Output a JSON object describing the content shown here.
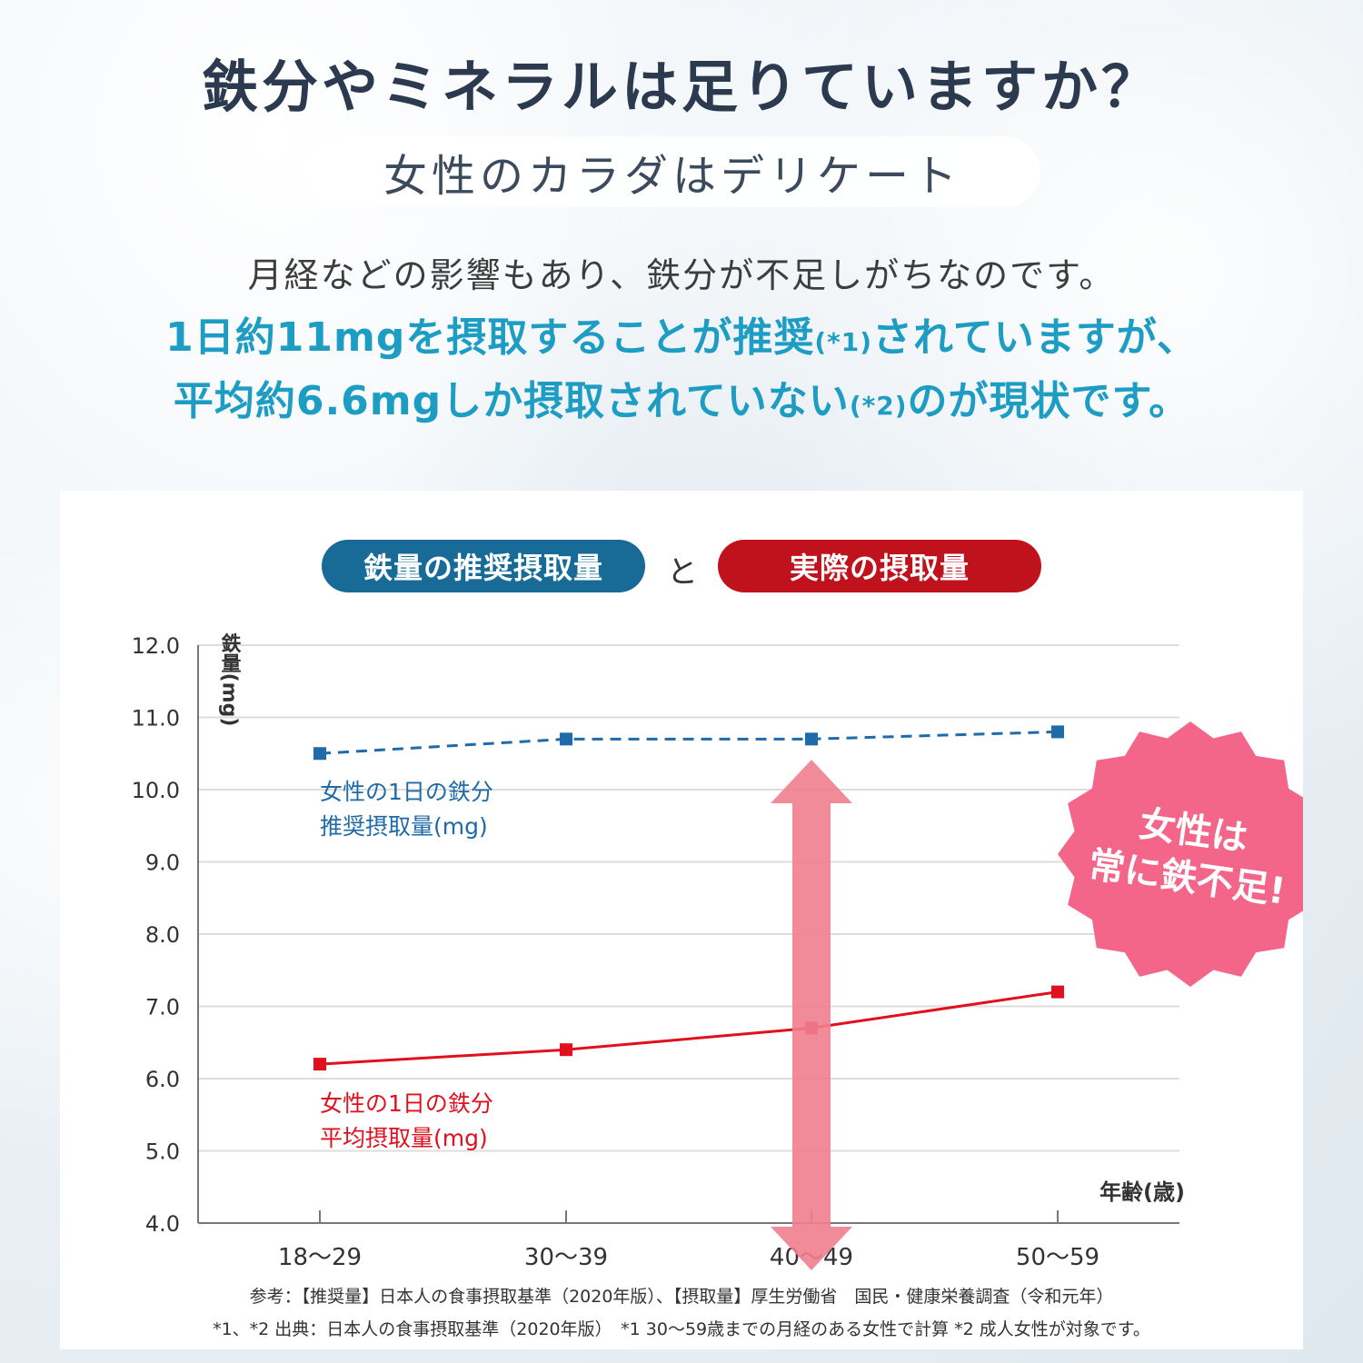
{
  "header": {
    "title": "鉄分やミネラルは足りていますか？",
    "subtitle": "女性のカラダはデリケート",
    "line1": "月経などの影響もあり、鉄分が不足しがちなのです。",
    "line2_a": "1日約11mgを摂取することが推奨",
    "line2_note": "(*1)",
    "line2_b": "されていますが、",
    "line3_a": "平均約6.6mgしか摂取されていない",
    "line3_note": "(*2)",
    "line3_b": "のが現状です。"
  },
  "legend": {
    "blue_pill": "鉄量の推奨摂取量",
    "connector": "と",
    "red_pill": "実際の摂取量"
  },
  "badge": {
    "line1": "女性は",
    "line2": "常に鉄不足!"
  },
  "footer": {
    "line1": "参考：【推奨量】日本人の食事摂取基準（2020年版）、【摂取量】厚生労働省　国民・健康栄養調査（令和元年）",
    "line2": "*1、*2 出典：日本人の食事摂取基準（2020年版）　*1 30〜59歳までの月経のある女性で計算 *2 成人女性が対象です。"
  },
  "colors": {
    "blue": "#1f6aa8",
    "red": "#e0101f",
    "arrow": "#f07e8f",
    "badge": "#f3668a",
    "accent_text": "#1e9dc4"
  },
  "chart_data": {
    "type": "line",
    "categories": [
      "18〜29",
      "30〜39",
      "40〜49",
      "50〜59"
    ],
    "ylabel": "鉄量(mg)",
    "xlabel": "年齢(歳)",
    "ylim": [
      4.0,
      12.0
    ],
    "yticks": [
      "12.0",
      "11.0",
      "10.0",
      "9.0",
      "8.0",
      "7.0",
      "6.0",
      "5.0",
      "4.0"
    ],
    "grid": true,
    "series": [
      {
        "name": "女性の1日の鉄分推奨摂取量(mg)",
        "label_line1": "女性の1日の鉄分",
        "label_line2": "推奨摂取量(mg)",
        "values": [
          10.5,
          10.7,
          10.7,
          10.8
        ],
        "style": "dashed",
        "color": "#1f6aa8"
      },
      {
        "name": "女性の1日の鉄分平均摂取量(mg)",
        "label_line1": "女性の1日の鉄分",
        "label_line2": "平均摂取量(mg)",
        "values": [
          6.2,
          6.4,
          6.7,
          7.2
        ],
        "style": "solid",
        "color": "#e0101f"
      }
    ]
  }
}
